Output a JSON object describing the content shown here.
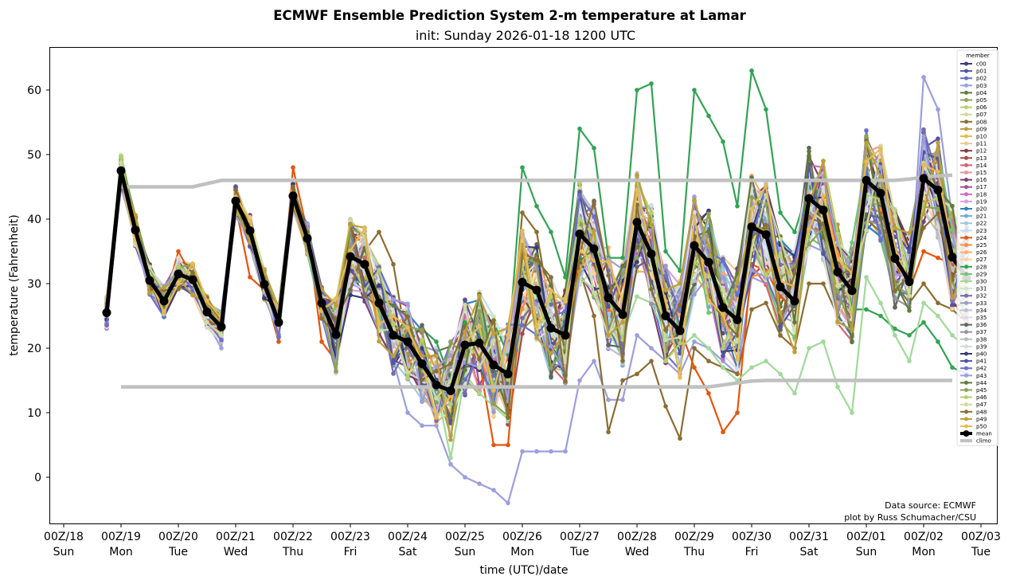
{
  "chart_data": {
    "type": "line",
    "title": "ECMWF Ensemble Prediction System 2-m temperature at Lamar",
    "subtitle": "init: Sunday 2026-01-18 1200 UTC",
    "xlabel": "time (UTC)/date",
    "ylabel": "temperature (Fahrenheit)",
    "ylim": [
      -7.5,
      66.5
    ],
    "yticks": [
      0,
      10,
      20,
      30,
      40,
      50,
      60
    ],
    "xlim_hours": [
      0,
      396
    ],
    "x_step_hours": 6,
    "x_start_hours": 18,
    "xticks": [
      {
        "hour": 0,
        "top": "00Z/18",
        "bottom": "Sun"
      },
      {
        "hour": 24,
        "top": "00Z/19",
        "bottom": "Mon"
      },
      {
        "hour": 48,
        "top": "00Z/20",
        "bottom": "Tue"
      },
      {
        "hour": 72,
        "top": "00Z/21",
        "bottom": "Wed"
      },
      {
        "hour": 96,
        "top": "00Z/22",
        "bottom": "Thu"
      },
      {
        "hour": 120,
        "top": "00Z/23",
        "bottom": "Fri"
      },
      {
        "hour": 144,
        "top": "00Z/24",
        "bottom": "Sat"
      },
      {
        "hour": 168,
        "top": "00Z/25",
        "bottom": "Sun"
      },
      {
        "hour": 192,
        "top": "00Z/26",
        "bottom": "Mon"
      },
      {
        "hour": 216,
        "top": "00Z/27",
        "bottom": "Tue"
      },
      {
        "hour": 240,
        "top": "00Z/28",
        "bottom": "Wed"
      },
      {
        "hour": 264,
        "top": "00Z/29",
        "bottom": "Thu"
      },
      {
        "hour": 288,
        "top": "00Z/30",
        "bottom": "Fri"
      },
      {
        "hour": 312,
        "top": "00Z/31",
        "bottom": "Sat"
      },
      {
        "hour": 336,
        "top": "00Z/01",
        "bottom": "Sun"
      },
      {
        "hour": 360,
        "top": "00Z/02",
        "bottom": "Mon"
      },
      {
        "hour": 384,
        "top": "00Z/03",
        "bottom": "Tue"
      }
    ],
    "grid": false,
    "legend": {
      "title": "member",
      "placement": "right"
    },
    "annotations": [
      "Data source: ECMWF",
      "plot by Russ Schumacher/CSU"
    ],
    "mean": {
      "name": "mean",
      "color": "#000000",
      "values": [
        25.5,
        47.5,
        38.3,
        30.5,
        27.3,
        31.5,
        30.6,
        25.6,
        23.3,
        42.8,
        38.2,
        29.9,
        24.0,
        43.6,
        37.0,
        27.0,
        22.1,
        34.2,
        33.0,
        27.0,
        22.0,
        21.0,
        17.6,
        14.3,
        13.4,
        20.5,
        20.8,
        17.4,
        16.0,
        30.2,
        29.0,
        23.1,
        22.0,
        37.7,
        35.4,
        27.8,
        25.2,
        39.5,
        34.6,
        25.0,
        22.7,
        35.9,
        33.3,
        26.3,
        24.4,
        38.8,
        37.6,
        29.5,
        27.3,
        43.2,
        41.4,
        31.8,
        28.9,
        46.0,
        44.0,
        33.9,
        30.3,
        46.3,
        44.5,
        34.1,
        30.9
      ]
    },
    "climo": {
      "name": "climo",
      "color": "#c0c0c0",
      "upper": {
        "start_hour": 24,
        "values": [
          45,
          45,
          45,
          45,
          45,
          45,
          45.5,
          46,
          46,
          46,
          46,
          46,
          46,
          46,
          46,
          46,
          46,
          46,
          46,
          46,
          46,
          46,
          46,
          46,
          46,
          46,
          46,
          46,
          46,
          46,
          46,
          46,
          46,
          46,
          46,
          46,
          46,
          46,
          46,
          46,
          46,
          46,
          46,
          46,
          46,
          46,
          46,
          46,
          46,
          46,
          46,
          46,
          46,
          46,
          46,
          46.2,
          46.5,
          46.7,
          46.8
        ]
      },
      "lower": {
        "start_hour": 24,
        "values": [
          14,
          14,
          14,
          14,
          14,
          14,
          14,
          14,
          14,
          14,
          14,
          14,
          14,
          14,
          14,
          14,
          14,
          14,
          14,
          14,
          14,
          14,
          14,
          14,
          14,
          14,
          14,
          14,
          14,
          14,
          14,
          14,
          14,
          14,
          14,
          14,
          14,
          14,
          14,
          14,
          14,
          14,
          14.3,
          14.6,
          14.9,
          15,
          15,
          15,
          15,
          15,
          15,
          15,
          15,
          15,
          15,
          15,
          15,
          15,
          15
        ]
      }
    },
    "members": [
      {
        "name": "c00",
        "color": "#393b79"
      },
      {
        "name": "p01",
        "color": "#5254a3"
      },
      {
        "name": "p02",
        "color": "#6b6ecf"
      },
      {
        "name": "p03",
        "color": "#9c9ede"
      },
      {
        "name": "p04",
        "color": "#637939"
      },
      {
        "name": "p05",
        "color": "#8ca252"
      },
      {
        "name": "p06",
        "color": "#b5cf6b"
      },
      {
        "name": "p07",
        "color": "#cedb9c"
      },
      {
        "name": "p08",
        "color": "#8c6d31"
      },
      {
        "name": "p09",
        "color": "#bd9e39"
      },
      {
        "name": "p10",
        "color": "#e7ba52"
      },
      {
        "name": "p11",
        "color": "#e7cb94"
      },
      {
        "name": "p12",
        "color": "#843c39"
      },
      {
        "name": "p13",
        "color": "#ad494a"
      },
      {
        "name": "p14",
        "color": "#d6616b"
      },
      {
        "name": "p15",
        "color": "#e7969c"
      },
      {
        "name": "p16",
        "color": "#7b4173"
      },
      {
        "name": "p17",
        "color": "#a55194"
      },
      {
        "name": "p18",
        "color": "#ce6dbd"
      },
      {
        "name": "p19",
        "color": "#de9ed6"
      },
      {
        "name": "p20",
        "color": "#3182bd"
      },
      {
        "name": "p21",
        "color": "#6baed6"
      },
      {
        "name": "p22",
        "color": "#9ecae1"
      },
      {
        "name": "p23",
        "color": "#c6dbef"
      },
      {
        "name": "p24",
        "color": "#e6550d"
      },
      {
        "name": "p25",
        "color": "#fd8d3c"
      },
      {
        "name": "p26",
        "color": "#fdae6b"
      },
      {
        "name": "p27",
        "color": "#fdd0a2"
      },
      {
        "name": "p28",
        "color": "#31a354"
      },
      {
        "name": "p29",
        "color": "#74c476"
      },
      {
        "name": "p30",
        "color": "#a1d99b"
      },
      {
        "name": "p31",
        "color": "#c7e9c0"
      },
      {
        "name": "p32",
        "color": "#756bb1"
      },
      {
        "name": "p33",
        "color": "#9e9ac8"
      },
      {
        "name": "p34",
        "color": "#bcbddc"
      },
      {
        "name": "p35",
        "color": "#dadaeb"
      },
      {
        "name": "p36",
        "color": "#636363"
      },
      {
        "name": "p37",
        "color": "#969696"
      },
      {
        "name": "p38",
        "color": "#bdbdbd"
      },
      {
        "name": "p39",
        "color": "#d9d9d9"
      },
      {
        "name": "p40",
        "color": "#393b79"
      },
      {
        "name": "p41",
        "color": "#5254a3"
      },
      {
        "name": "p42",
        "color": "#6b6ecf"
      },
      {
        "name": "p43",
        "color": "#9c9ede"
      },
      {
        "name": "p44",
        "color": "#637939"
      },
      {
        "name": "p45",
        "color": "#8ca252"
      },
      {
        "name": "p46",
        "color": "#b5cf6b"
      },
      {
        "name": "p47",
        "color": "#cedb9c"
      },
      {
        "name": "p48",
        "color": "#8c6d31"
      },
      {
        "name": "p49",
        "color": "#bd9e39"
      },
      {
        "name": "p50",
        "color": "#e7ba52"
      }
    ],
    "member_spread_note": "individual member traces scatter around the mean; notable extremes: p28 peaks ~63°F on 30th, p30 lows ~10°F on 31st, p03/p02 minima ~-4°F on 25th",
    "highlight_members": {
      "p28": [
        25,
        47,
        37,
        30,
        27,
        31,
        30,
        25,
        23,
        43,
        38,
        30,
        24,
        44,
        37,
        27,
        22,
        34,
        33,
        27,
        22,
        22,
        23,
        21,
        15,
        24,
        22,
        24,
        19,
        48,
        42,
        38,
        31,
        54,
        51,
        34,
        34,
        60,
        61,
        35,
        32,
        60,
        56,
        52,
        42,
        63,
        57,
        41,
        38,
        45,
        44,
        38,
        26,
        26,
        25,
        23,
        22,
        24,
        21,
        17,
        16
      ],
      "p30": [
        25,
        47,
        37,
        30,
        27,
        31,
        30,
        25,
        23,
        43,
        38,
        30,
        24,
        44,
        37,
        27,
        22,
        34,
        33,
        27,
        22,
        20,
        17,
        14,
        3,
        16,
        13,
        11,
        9,
        30,
        28,
        22,
        20,
        31,
        29,
        24,
        22,
        28,
        27,
        22,
        20,
        22,
        20,
        17,
        15,
        17,
        18,
        16,
        13,
        20,
        21,
        14,
        10,
        31,
        27,
        22,
        18,
        27,
        25,
        22,
        20
      ],
      "p03": [
        24,
        47,
        39,
        30,
        27,
        33,
        30,
        24,
        20,
        44,
        38,
        28,
        23,
        44,
        36,
        26,
        22,
        30,
        29,
        25,
        18,
        10,
        8,
        8,
        2,
        0,
        -1,
        -2,
        -4,
        4,
        4,
        4,
        4,
        15,
        18,
        12,
        12,
        22,
        20,
        18,
        16,
        21,
        20,
        18,
        16,
        31,
        30,
        25,
        24,
        36,
        35,
        28,
        26,
        40,
        39,
        30,
        28,
        62,
        57,
        40,
        36
      ],
      "p08": [
        25,
        49,
        36,
        31,
        28,
        32,
        31,
        26,
        23,
        45,
        39,
        31,
        25,
        44,
        37,
        28,
        22,
        36,
        35,
        38,
        33,
        20,
        19,
        16,
        14,
        22,
        21,
        18,
        16,
        41,
        38,
        25,
        24,
        32,
        25,
        7,
        15,
        16,
        18,
        11,
        6,
        20,
        18,
        17,
        16,
        26,
        27,
        22,
        20,
        30,
        30,
        25,
        22,
        40,
        38,
        30,
        27,
        30,
        27,
        26,
        24
      ],
      "p24": [
        26,
        47,
        38,
        30,
        27,
        35,
        31,
        25,
        22,
        42,
        31,
        29,
        21,
        48,
        38,
        21,
        18,
        38,
        36,
        28,
        23,
        20,
        16,
        13,
        12,
        20,
        18,
        5,
        5,
        30,
        27,
        22,
        19,
        36,
        33,
        26,
        25,
        38,
        33,
        25,
        23,
        17,
        13,
        7,
        10,
        33,
        32,
        28,
        26,
        39,
        38,
        30,
        27,
        42,
        41,
        33,
        29,
        35,
        34,
        33,
        31
      ]
    }
  }
}
